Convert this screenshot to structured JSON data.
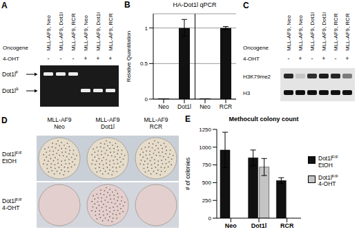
{
  "panels": {
    "A": {
      "letter": "A",
      "row_labels": [
        "Oncogene",
        "4-OHT"
      ],
      "lanes": [
        {
          "oncogene": "MLL-AF9, Neo",
          "treatment": "-",
          "band": "Dot1lF"
        },
        {
          "oncogene": "MLL-AF9, Dot1l",
          "treatment": "-",
          "band": "Dot1lF"
        },
        {
          "oncogene": "MLL-AF9, RCR",
          "treatment": "-",
          "band": "Dot1lF"
        },
        {
          "oncogene": "MLL-AF9, Neo",
          "treatment": "+",
          "band": "Dot1lΔ"
        },
        {
          "oncogene": "MLL-AF9, Dot1l",
          "treatment": "+",
          "band": "Dot1lΔ"
        },
        {
          "oncogene": "MLL-AF9, RCR",
          "treatment": "+",
          "band": "Dot1lΔ"
        }
      ],
      "bands": [
        "Dot1lF",
        "Dot1lΔ"
      ]
    },
    "C": {
      "letter": "C",
      "row_labels": [
        "Oncogene",
        "4-OHT"
      ],
      "lanes": [
        {
          "oncogene": "MLL-AF9, Neo",
          "treatment": "-"
        },
        {
          "oncogene": "MLL-AF9, Neo",
          "treatment": "+"
        },
        {
          "oncogene": "MLL-AF9, Dot1l",
          "treatment": "-"
        },
        {
          "oncogene": "MLL-AF9, Dot1l",
          "treatment": "+"
        },
        {
          "oncogene": "MLL-AF9, RCR",
          "treatment": "-"
        },
        {
          "oncogene": "MLL-AF9, RCR",
          "treatment": "+"
        }
      ],
      "blots": [
        {
          "label": "H3K79me2",
          "signal": [
            0.9,
            0.15,
            0.85,
            0.95,
            0.9,
            0.5
          ]
        },
        {
          "label": "H3",
          "signal": [
            1,
            1,
            1,
            1,
            1,
            1
          ]
        }
      ]
    },
    "D": {
      "letter": "D",
      "columns": [
        "MLL-AF9 Neo",
        "MLL-AF9 Dot1l",
        "MLL-AF9 RCR"
      ],
      "rows": [
        "Dot1lF/F EtOH",
        "Dot1lF/F 4-OHT"
      ],
      "colonies": [
        [
          true,
          true,
          true
        ],
        [
          false,
          true,
          false
        ]
      ]
    }
  },
  "chart_data": [
    {
      "panel": "B",
      "type": "bar",
      "title": "HA-Dot1l qPCR",
      "y_label": "Relative Quantitation",
      "categories": [
        "Neo",
        "Dot1l",
        "Neo",
        "RCR"
      ],
      "values": [
        0.01,
        1,
        0.01,
        1
      ],
      "errors": [
        0,
        0.12,
        0,
        0.02
      ],
      "color": "#111111",
      "ylim": [
        0,
        1.2
      ],
      "yticks": [
        0,
        0.5,
        1
      ],
      "grid": true
    },
    {
      "panel": "E",
      "type": "bar",
      "title": "Methocult colony count",
      "y_label": "# of colonies",
      "categories": [
        "Neo",
        "Dot1l",
        "RCR"
      ],
      "series": [
        {
          "name": "Dot1lF/F EtOH",
          "color": "#111111",
          "values": [
            960,
            850,
            530
          ],
          "errors": [
            250,
            110,
            40
          ]
        },
        {
          "name": "Dot1lF/F 4-OHT",
          "color": "#c4c4c4",
          "values": [
            0,
            720,
            0
          ],
          "errors": [
            0,
            120,
            0
          ]
        }
      ],
      "ylim": [
        0,
        1250
      ],
      "yticks": [
        0,
        250,
        500,
        750,
        1000,
        1250
      ],
      "grid": false,
      "legend": "right"
    }
  ]
}
